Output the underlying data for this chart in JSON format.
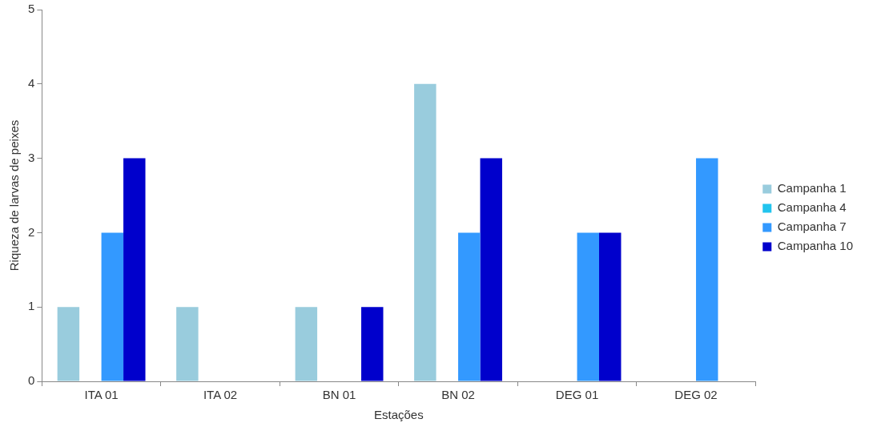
{
  "chart_data": {
    "type": "bar",
    "xlabel": "Estações",
    "ylabel": "Riqueza de larvas de peixes",
    "categories": [
      "ITA 01",
      "ITA 02",
      "BN 01",
      "BN 02",
      "DEG 01",
      "DEG 02"
    ],
    "series": [
      {
        "name": "Campanha 1",
        "color": "#99ccdd",
        "values": [
          1,
          1,
          1,
          4,
          0,
          0
        ]
      },
      {
        "name": "Campanha 4",
        "color": "#22c4ee",
        "values": [
          0,
          0,
          0,
          0,
          0,
          0
        ]
      },
      {
        "name": "Campanha 7",
        "color": "#3399ff",
        "values": [
          2,
          0,
          0,
          2,
          2,
          3
        ]
      },
      {
        "name": "Campanha 10",
        "color": "#0000cc",
        "values": [
          3,
          0,
          1,
          3,
          2,
          0
        ]
      }
    ],
    "ylim": [
      0,
      5
    ],
    "yticks": [
      0,
      1,
      2,
      3,
      4,
      5
    ],
    "grid": false,
    "legend": "right"
  }
}
